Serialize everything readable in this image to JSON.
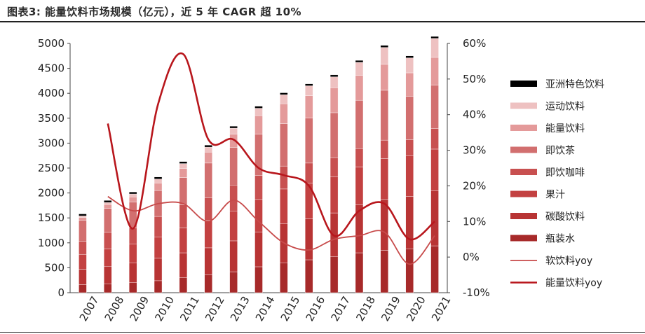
{
  "title": "图表3:   能量饮料市场规模（亿元），近 5 年 CAGR 超 10%",
  "chart_data": {
    "type": "bar",
    "stacked": true,
    "categories": [
      "2007",
      "2008",
      "2009",
      "2010",
      "2011",
      "2012",
      "2013",
      "2014",
      "2015",
      "2016",
      "2017",
      "2018",
      "2019",
      "2020",
      "2021"
    ],
    "left_axis": {
      "ylim": [
        0,
        5000
      ],
      "ticks": [
        "0",
        "500",
        "1000",
        "1500",
        "2000",
        "2500",
        "3000",
        "3500",
        "4000",
        "4500",
        "5000"
      ]
    },
    "right_axis": {
      "ylim": [
        -10,
        60
      ],
      "ticks": [
        "-10%",
        "0%",
        "10%",
        "20%",
        "30%",
        "40%",
        "50%",
        "60%"
      ]
    },
    "series": [
      {
        "name": "瓶装水",
        "color": "#a72a2a",
        "values": [
          160,
          180,
          200,
          240,
          300,
          360,
          420,
          520,
          600,
          660,
          720,
          800,
          850,
          880,
          940
        ]
      },
      {
        "name": "碳酸饮料",
        "color": "#b83434",
        "values": [
          310,
          350,
          400,
          450,
          500,
          540,
          620,
          700,
          780,
          820,
          880,
          960,
          1020,
          1050,
          1100
        ]
      },
      {
        "name": "果汁",
        "color": "#c34141",
        "values": [
          300,
          350,
          380,
          430,
          500,
          550,
          600,
          650,
          700,
          720,
          720,
          760,
          820,
          820,
          840
        ]
      },
      {
        "name": "即饮咖啡",
        "color": "#c85050",
        "values": [
          260,
          330,
          320,
          410,
          460,
          450,
          520,
          480,
          460,
          400,
          390,
          370,
          370,
          320,
          410
        ]
      },
      {
        "name": "即饮茶",
        "color": "#d26f6f",
        "values": [
          420,
          480,
          520,
          520,
          550,
          700,
          750,
          830,
          850,
          900,
          900,
          970,
          1000,
          870,
          870
        ]
      },
      {
        "name": "能量饮料",
        "color": "#e49a9a",
        "values": [
          60,
          80,
          100,
          150,
          180,
          220,
          270,
          370,
          400,
          450,
          500,
          500,
          520,
          470,
          560
        ]
      },
      {
        "name": "运动饮料",
        "color": "#eec1c1",
        "values": [
          30,
          40,
          60,
          80,
          100,
          100,
          120,
          150,
          180,
          200,
          220,
          260,
          340,
          300,
          380
        ]
      },
      {
        "name": "亚洲特色饮料",
        "color": "#000000",
        "values": [
          40,
          40,
          40,
          40,
          40,
          40,
          40,
          40,
          40,
          40,
          40,
          40,
          40,
          40,
          40
        ]
      }
    ],
    "lines": [
      {
        "name": "软饮料yoy",
        "color": "#c74a4a",
        "axis": "right",
        "values": [
          null,
          17,
          13,
          15,
          15,
          10,
          16,
          10,
          4,
          2,
          5,
          6,
          7,
          -2,
          6
        ]
      },
      {
        "name": "能量饮料yoy",
        "color": "#b8161c",
        "axis": "right",
        "values": [
          null,
          37.5,
          8,
          43,
          57,
          33,
          33,
          25,
          23,
          20,
          6,
          13,
          15,
          5,
          10
        ]
      }
    ],
    "legend_order": [
      "亚洲特色饮料",
      "运动饮料",
      "能量饮料",
      "即饮茶",
      "即饮咖啡",
      "果汁",
      "碳酸饮料",
      "瓶装水",
      "软饮料yoy",
      "能量饮料yoy"
    ],
    "legend_position": "right"
  }
}
